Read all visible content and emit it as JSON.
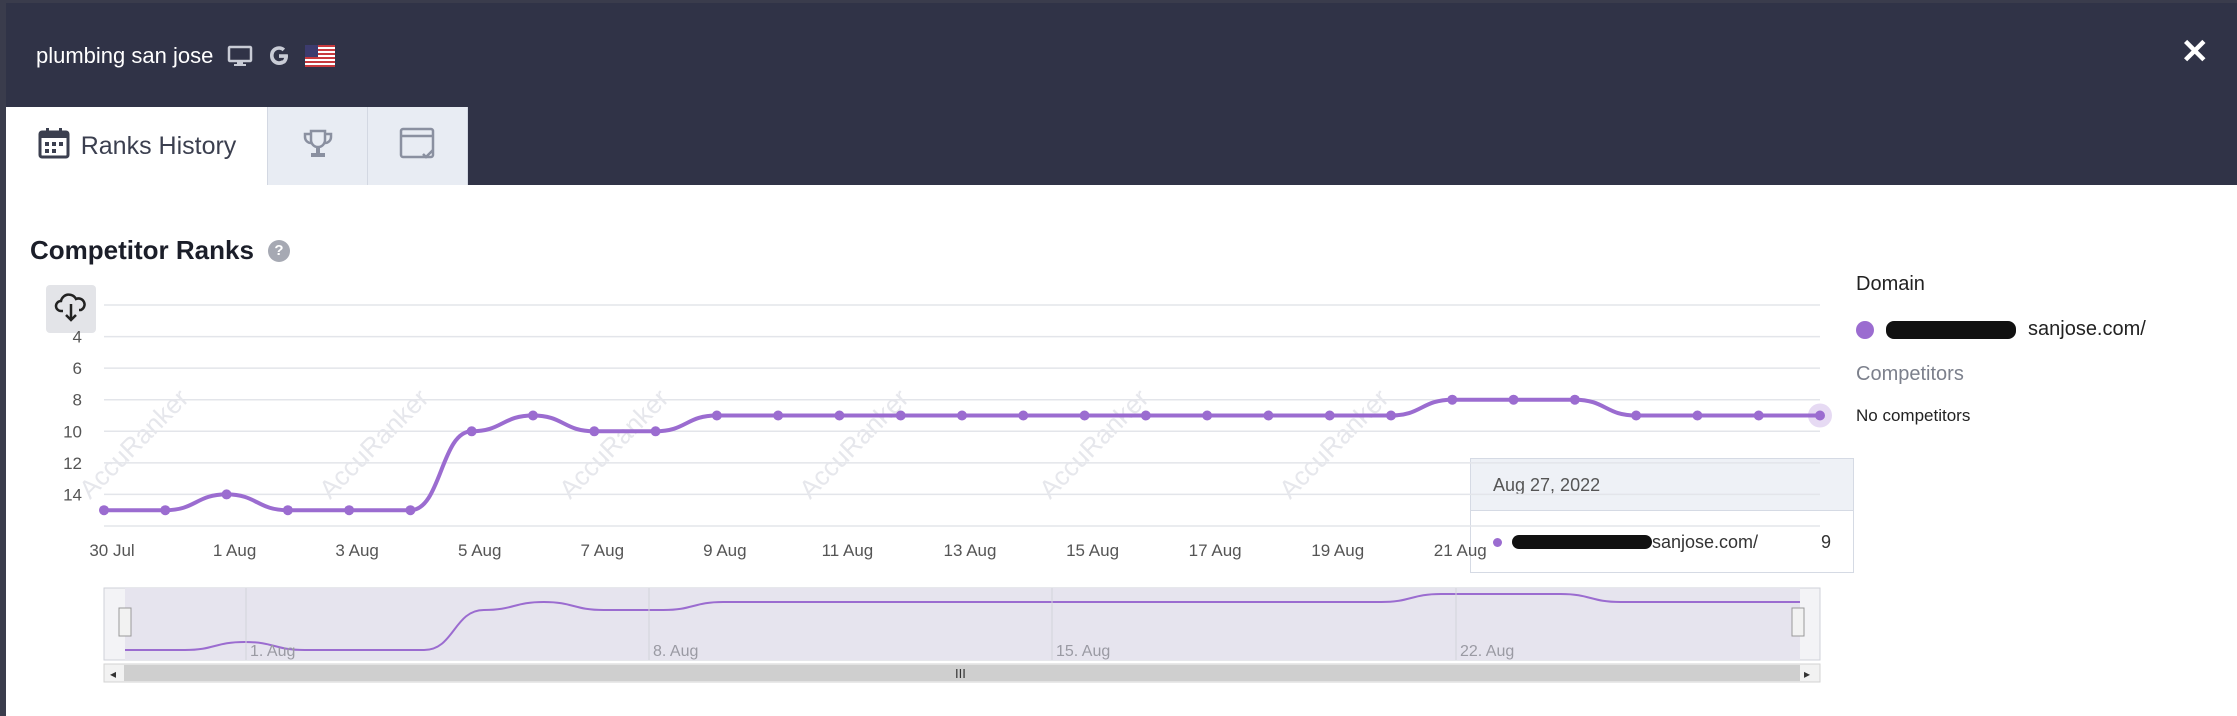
{
  "header": {
    "keyword": "plumbing san jose",
    "icons": [
      "desktop-icon",
      "google-icon",
      "us-flag-icon"
    ],
    "close_label": "✕"
  },
  "tabs": [
    {
      "label": "Ranks History",
      "icon": "calendar-icon",
      "active": true
    },
    {
      "label": "",
      "icon": "trophy-icon",
      "active": false
    },
    {
      "label": "",
      "icon": "calendar-check-icon",
      "active": false
    }
  ],
  "section": {
    "title": "Competitor Ranks",
    "help": "?"
  },
  "legend": {
    "heading": "Domain",
    "domain_label": "sanjose.com/",
    "competitors_heading": "Competitors",
    "competitors_empty": "No competitors"
  },
  "tooltip": {
    "date": "Aug 27, 2022",
    "domain_label": "sanjose.com/",
    "value": "9"
  },
  "colors": {
    "series": "#9b6cd0",
    "header": "#303347"
  },
  "watermark": "AccuRanker",
  "chart_data": {
    "type": "line",
    "y_reversed": true,
    "y_ticks": [
      4,
      6,
      8,
      10,
      12,
      14
    ],
    "x_tick_labels": [
      "30 Jul",
      "1 Aug",
      "3 Aug",
      "5 Aug",
      "7 Aug",
      "9 Aug",
      "11 Aug",
      "13 Aug",
      "15 Aug",
      "17 Aug",
      "19 Aug",
      "21 Aug"
    ],
    "x": [
      "2022-07-30",
      "2022-07-31",
      "2022-08-01",
      "2022-08-02",
      "2022-08-03",
      "2022-08-04",
      "2022-08-05",
      "2022-08-06",
      "2022-08-07",
      "2022-08-08",
      "2022-08-09",
      "2022-08-10",
      "2022-08-11",
      "2022-08-12",
      "2022-08-13",
      "2022-08-14",
      "2022-08-15",
      "2022-08-16",
      "2022-08-17",
      "2022-08-18",
      "2022-08-19",
      "2022-08-20",
      "2022-08-21",
      "2022-08-22",
      "2022-08-23",
      "2022-08-24",
      "2022-08-25",
      "2022-08-26",
      "2022-08-27"
    ],
    "series": [
      {
        "name": "sanjose.com/",
        "values": [
          15,
          15,
          14,
          15,
          15,
          15,
          10,
          9,
          10,
          10,
          9,
          9,
          9,
          9,
          9,
          9,
          9,
          9,
          9,
          9,
          9,
          9,
          8,
          8,
          8,
          9,
          9,
          9,
          9
        ]
      }
    ],
    "navigator_labels": [
      "1. Aug",
      "8. Aug",
      "15. Aug",
      "22. Aug"
    ],
    "grid": true
  }
}
